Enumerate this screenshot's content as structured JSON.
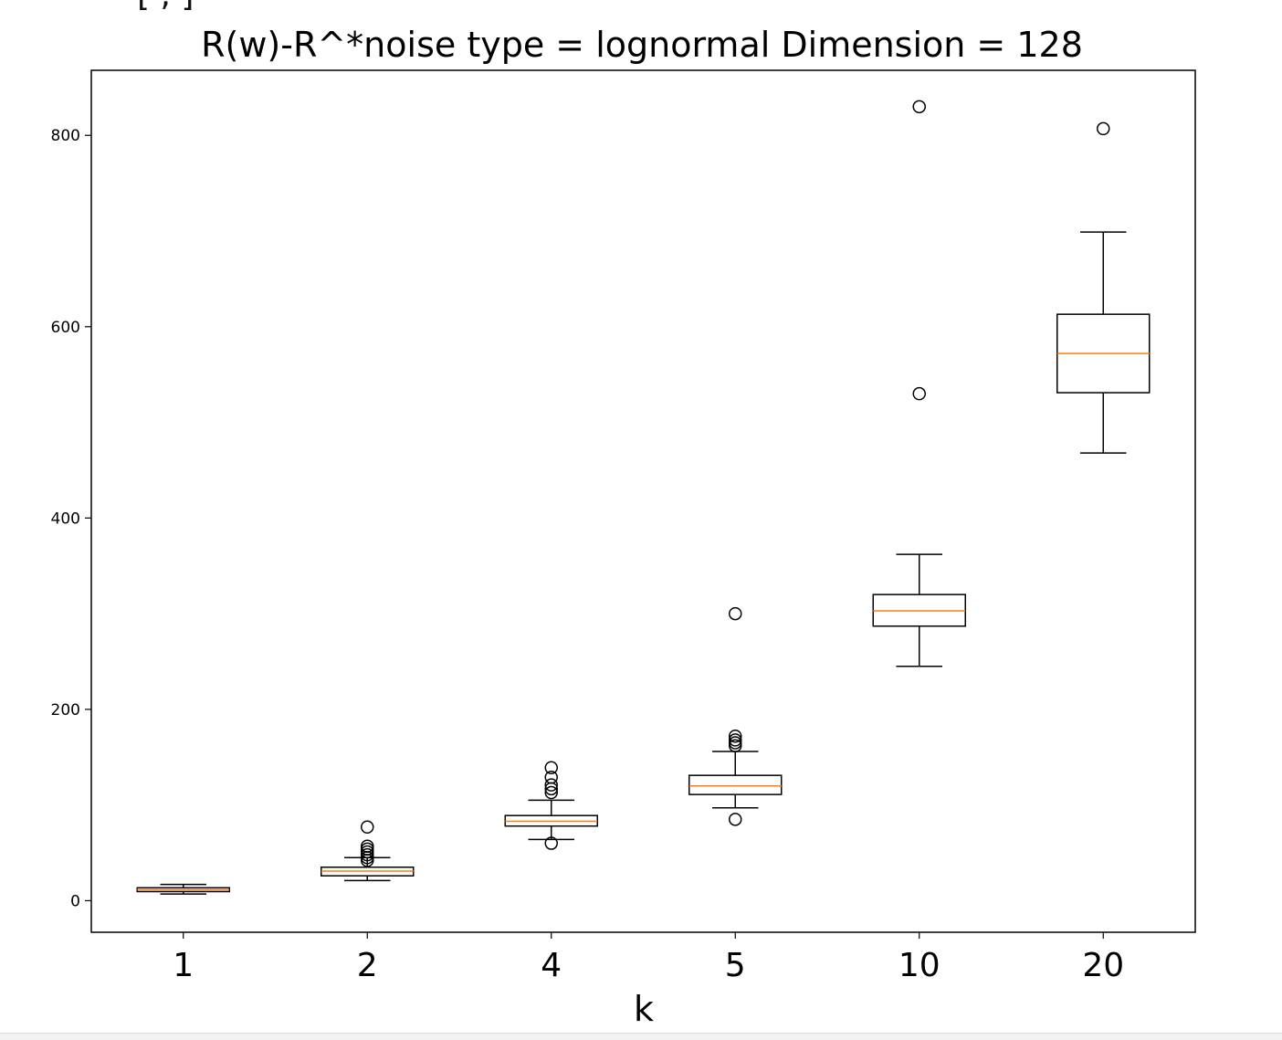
{
  "clipped_header": "[  ,  ]",
  "chart_data": {
    "type": "box",
    "title": "R(w)-R^*noise type = lognormal Dimension = 128",
    "xlabel": "k",
    "ylabel": "",
    "categories": [
      "1",
      "2",
      "4",
      "5",
      "10",
      "20"
    ],
    "ylim": [
      -33,
      868
    ],
    "yticks": [
      0,
      200,
      400,
      600,
      800
    ],
    "grid": false,
    "colors": {
      "box": "#000000",
      "median": "#ff7f0e"
    },
    "boxes": [
      {
        "label": "1",
        "q1": 9.5,
        "median": 11.5,
        "q3": 13.5,
        "whisker_low": 7,
        "whisker_high": 17,
        "outliers": []
      },
      {
        "label": "2",
        "q1": 26,
        "median": 31,
        "q3": 35,
        "whisker_low": 21,
        "whisker_high": 45,
        "outliers": [
          42,
          45,
          48,
          51,
          54,
          57,
          77
        ]
      },
      {
        "label": "4",
        "q1": 78,
        "median": 83,
        "q3": 89,
        "whisker_low": 64,
        "whisker_high": 105,
        "outliers": [
          60,
          113,
          117,
          121,
          129,
          139
        ]
      },
      {
        "label": "5",
        "q1": 111,
        "median": 120,
        "q3": 131,
        "whisker_low": 97,
        "whisker_high": 156,
        "outliers": [
          85,
          162,
          165,
          168,
          172,
          300
        ]
      },
      {
        "label": "10",
        "q1": 287,
        "median": 303,
        "q3": 320,
        "whisker_low": 245,
        "whisker_high": 362,
        "outliers": [
          530,
          830
        ]
      },
      {
        "label": "20",
        "q1": 531,
        "median": 572,
        "q3": 613,
        "whisker_low": 468,
        "whisker_high": 699,
        "outliers": [
          807
        ]
      }
    ]
  }
}
